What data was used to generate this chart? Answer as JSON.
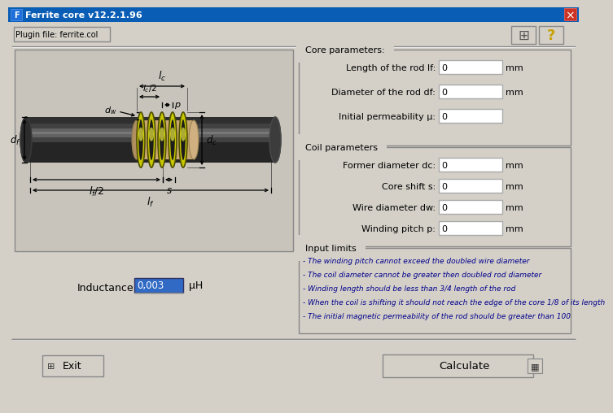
{
  "title": "Ferrite core v12.2.1.96",
  "bg_color": "#d4d0c8",
  "plugin_text": "Plugin file: ferrite.col",
  "core_params_title": "Core parameters:",
  "core_params": [
    {
      "label": "Length of the rod lf:",
      "value": "0",
      "unit": "mm"
    },
    {
      "label": "Diameter of the rod df:",
      "value": "0",
      "unit": "mm"
    },
    {
      "label": "Initial permeability μ:",
      "value": "0",
      "unit": ""
    }
  ],
  "coil_params_title": "Coil parameters",
  "coil_params": [
    {
      "label": "Former diameter dc:",
      "value": "0",
      "unit": "mm"
    },
    {
      "label": "Core shift s:",
      "value": "0",
      "unit": "mm"
    },
    {
      "label": "Wire diameter dw:",
      "value": "0",
      "unit": "mm"
    },
    {
      "label": "Winding pitch p:",
      "value": "0",
      "unit": "mm"
    }
  ],
  "input_limits_title": "Input limits",
  "input_limits": [
    "- The winding pitch cannot exceed the doubled wire diameter",
    "- The coil diameter cannot be greater then doubled rod diameter",
    "- Winding length should be less than 3/4 length of the rod",
    "- When the coil is shifting it should not reach the edge of the core 1/8 of its length",
    "- The initial magnetic permeability of the rod should be greater than 100"
  ],
  "inductance_label": "Inductance:",
  "inductance_value": "0,003",
  "inductance_unit": "μH",
  "exit_btn": "Exit",
  "calc_btn": "Calculate",
  "field_selected_bg": "#316ac5",
  "field_selected_fg": "#ffffff",
  "limits_color": "#00008b"
}
